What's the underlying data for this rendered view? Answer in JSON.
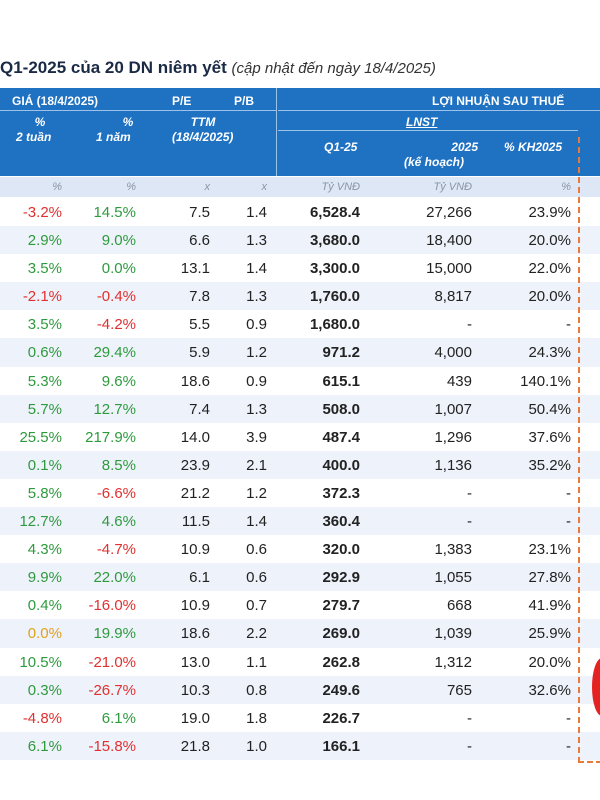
{
  "title": {
    "main": "Q1-2025 của 20 DN niêm yết",
    "sub": "(cập nhật đến ngày 18/4/2025)"
  },
  "header": {
    "gia": "GIÁ (18/4/2025)",
    "pe": "P/E",
    "pb": "P/B",
    "loi_nhuan": "LỢI NHUẬN SAU THUẾ",
    "pct1": "%",
    "tuan2": "2 tuần",
    "pct2": "%",
    "nam1": "1 năm",
    "ttm": "TTM",
    "ttm_date": "(18/4/2025)",
    "lnst": "LNST",
    "q1": "Q1-25",
    "y2025": "2025",
    "kehoach": "(kế hoạch)",
    "pct_kh": "% KH2025"
  },
  "units": {
    "u1": "%",
    "u2": "%",
    "u3": "x",
    "u4": "x",
    "u5": "Tỷ VNĐ",
    "u6": "Tỷ VNĐ",
    "u7": "%"
  },
  "rows": [
    {
      "w2": "-3.2%",
      "y1": "14.5%",
      "pe": "7.5",
      "pb": "1.4",
      "q1": "6,528.4",
      "plan": "27,266",
      "kh": "23.9%"
    },
    {
      "w2": "2.9%",
      "y1": "9.0%",
      "pe": "6.6",
      "pb": "1.3",
      "q1": "3,680.0",
      "plan": "18,400",
      "kh": "20.0%"
    },
    {
      "w2": "3.5%",
      "y1": "0.0%",
      "pe": "13.1",
      "pb": "1.4",
      "q1": "3,300.0",
      "plan": "15,000",
      "kh": "22.0%"
    },
    {
      "w2": "-2.1%",
      "y1": "-0.4%",
      "pe": "7.8",
      "pb": "1.3",
      "q1": "1,760.0",
      "plan": "8,817",
      "kh": "20.0%"
    },
    {
      "w2": "3.5%",
      "y1": "-4.2%",
      "pe": "5.5",
      "pb": "0.9",
      "q1": "1,680.0",
      "plan": "-",
      "kh": "-"
    },
    {
      "w2": "0.6%",
      "y1": "29.4%",
      "pe": "5.9",
      "pb": "1.2",
      "q1": "971.2",
      "plan": "4,000",
      "kh": "24.3%"
    },
    {
      "w2": "5.3%",
      "y1": "9.6%",
      "pe": "18.6",
      "pb": "0.9",
      "q1": "615.1",
      "plan": "439",
      "kh": "140.1%"
    },
    {
      "w2": "5.7%",
      "y1": "12.7%",
      "pe": "7.4",
      "pb": "1.3",
      "q1": "508.0",
      "plan": "1,007",
      "kh": "50.4%"
    },
    {
      "w2": "25.5%",
      "y1": "217.9%",
      "pe": "14.0",
      "pb": "3.9",
      "q1": "487.4",
      "plan": "1,296",
      "kh": "37.6%"
    },
    {
      "w2": "0.1%",
      "y1": "8.5%",
      "pe": "23.9",
      "pb": "2.1",
      "q1": "400.0",
      "plan": "1,136",
      "kh": "35.2%"
    },
    {
      "w2": "5.8%",
      "y1": "-6.6%",
      "pe": "21.2",
      "pb": "1.2",
      "q1": "372.3",
      "plan": "-",
      "kh": "-"
    },
    {
      "w2": "12.7%",
      "y1": "4.6%",
      "pe": "11.5",
      "pb": "1.4",
      "q1": "360.4",
      "plan": "-",
      "kh": "-"
    },
    {
      "w2": "4.3%",
      "y1": "-4.7%",
      "pe": "10.9",
      "pb": "0.6",
      "q1": "320.0",
      "plan": "1,383",
      "kh": "23.1%"
    },
    {
      "w2": "9.9%",
      "y1": "22.0%",
      "pe": "6.1",
      "pb": "0.6",
      "q1": "292.9",
      "plan": "1,055",
      "kh": "27.8%"
    },
    {
      "w2": "0.4%",
      "y1": "-16.0%",
      "pe": "10.9",
      "pb": "0.7",
      "q1": "279.7",
      "plan": "668",
      "kh": "41.9%"
    },
    {
      "w2": "0.0%",
      "y1": "19.9%",
      "pe": "18.6",
      "pb": "2.2",
      "q1": "269.0",
      "plan": "1,039",
      "kh": "25.9%"
    },
    {
      "w2": "10.5%",
      "y1": "-21.0%",
      "pe": "13.0",
      "pb": "1.1",
      "q1": "262.8",
      "plan": "1,312",
      "kh": "20.0%"
    },
    {
      "w2": "0.3%",
      "y1": "-26.7%",
      "pe": "10.3",
      "pb": "0.8",
      "q1": "249.6",
      "plan": "765",
      "kh": "32.6%"
    },
    {
      "w2": "-4.8%",
      "y1": "6.1%",
      "pe": "19.0",
      "pb": "1.8",
      "q1": "226.7",
      "plan": "-",
      "kh": "-"
    },
    {
      "w2": "6.1%",
      "y1": "-15.8%",
      "pe": "21.8",
      "pb": "1.0",
      "q1": "166.1",
      "plan": "-",
      "kh": "-"
    }
  ]
}
